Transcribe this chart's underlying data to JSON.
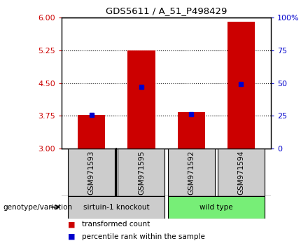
{
  "title": "GDS5611 / A_51_P498429",
  "samples": [
    "GSM971593",
    "GSM971595",
    "GSM971592",
    "GSM971594"
  ],
  "bar_values": [
    3.77,
    5.25,
    3.83,
    5.9
  ],
  "percentile_values": [
    3.77,
    4.42,
    3.79,
    4.47
  ],
  "ylim": [
    3.0,
    6.0
  ],
  "yticks_left": [
    3,
    3.75,
    4.5,
    5.25,
    6
  ],
  "yticks_right": [
    0,
    25,
    50,
    75,
    100
  ],
  "bar_color": "#cc0000",
  "blue_color": "#0000cc",
  "group1_label": "sirtuin-1 knockout",
  "group1_color": "#cccccc",
  "group2_label": "wild type",
  "group2_color": "#77ee77",
  "sample_box_color": "#cccccc",
  "genotype_label": "genotype/variation",
  "legend1": "transformed count",
  "legend2": "percentile rank within the sample",
  "bar_width": 0.55,
  "grid_yvals": [
    3.75,
    4.5,
    5.25
  ]
}
